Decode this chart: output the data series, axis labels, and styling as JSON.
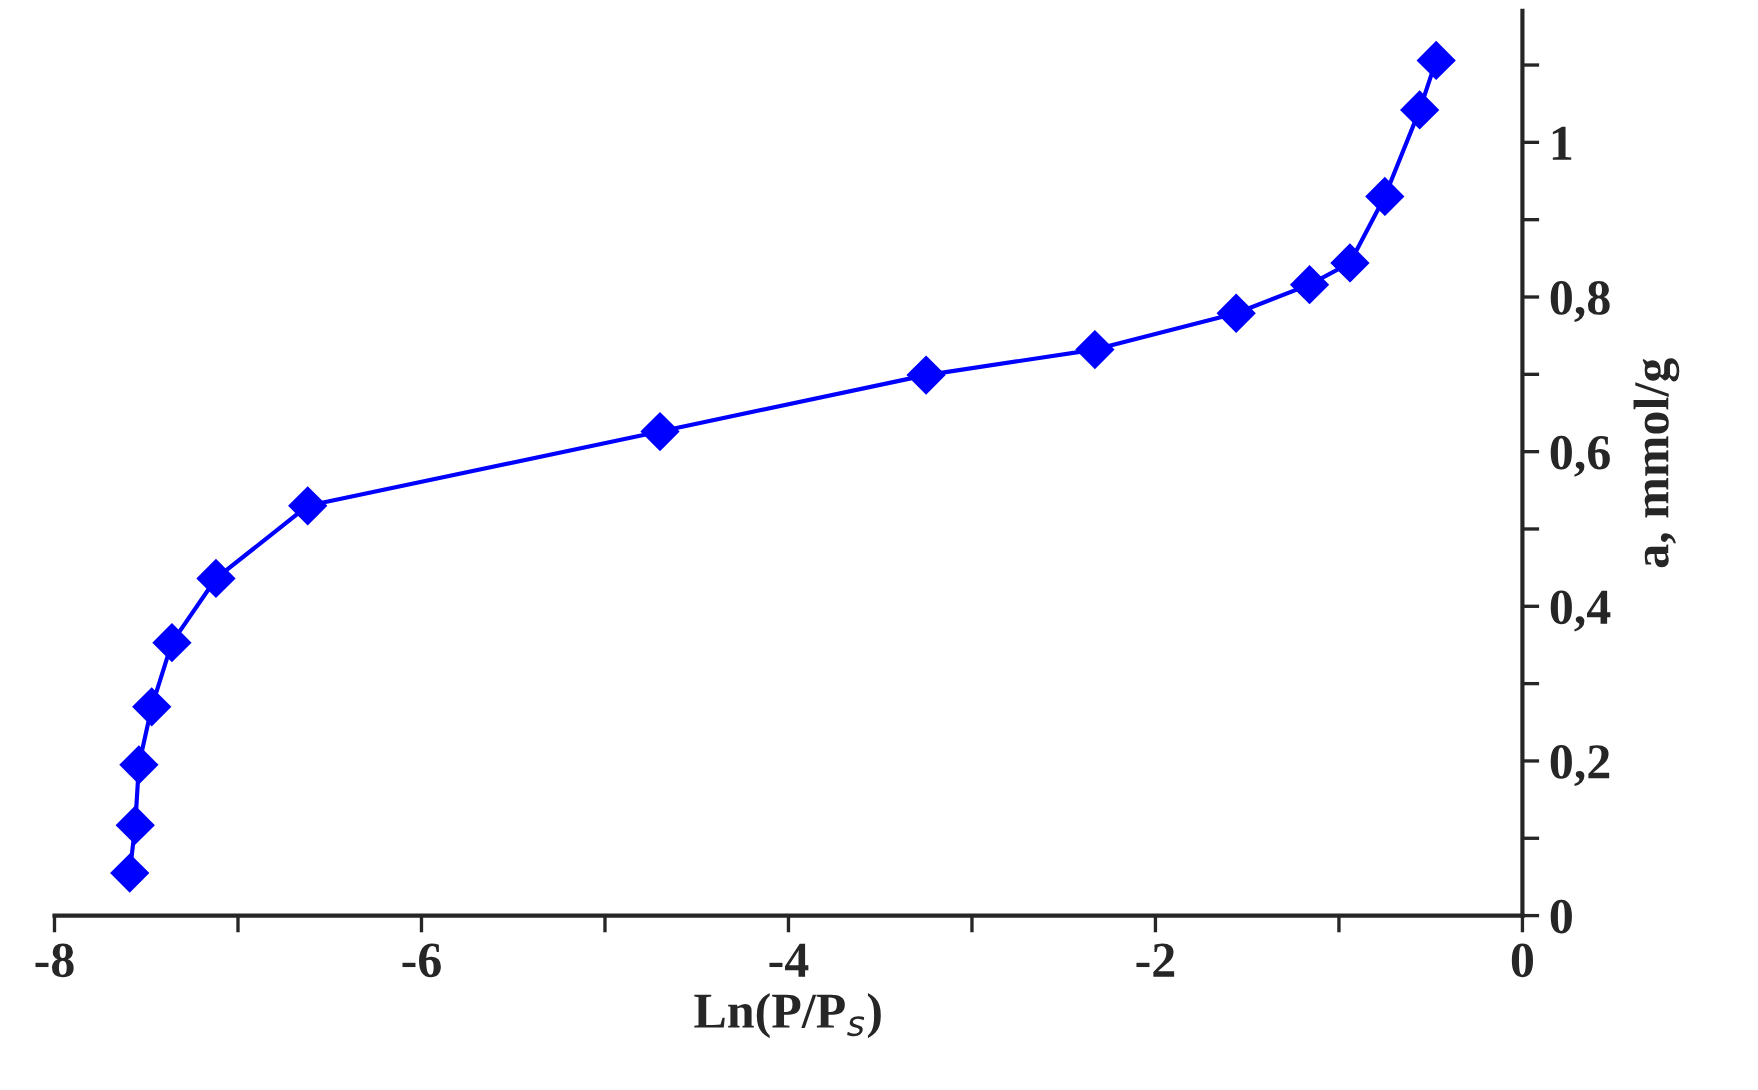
{
  "chart_data": {
    "type": "line",
    "xlabel": "Ln(P/P$_{s}$)",
    "ylabel": "a, mmol/g",
    "x": [
      -7.59,
      -7.56,
      -7.54,
      -7.47,
      -7.36,
      -7.12,
      -6.62,
      -4.7,
      -3.25,
      -2.33,
      -1.56,
      -1.16,
      -0.94,
      -0.75,
      -0.56,
      -0.47
    ],
    "series": [
      {
        "color": "#0000ff",
        "values": [
          0.055,
          0.117,
          0.195,
          0.27,
          0.353,
          0.436,
          0.53,
          0.626,
          0.699,
          0.732,
          0.779,
          0.816,
          0.844,
          0.93,
          1.042,
          1.106
        ]
      }
    ],
    "xlim": [
      -8,
      0
    ],
    "ylim": [
      0,
      1.17
    ],
    "xticks": [
      -8,
      {
        "value": -7,
        "label": null
      },
      -6,
      {
        "value": -5,
        "label": null
      },
      -4,
      {
        "value": -3,
        "label": null
      },
      -2,
      {
        "value": -1,
        "label": null
      },
      0
    ],
    "yticks": [
      {
        "value": 0,
        "label": "0"
      },
      {
        "value": 0.1,
        "label": null
      },
      {
        "value": 0.2,
        "label": "0,2"
      },
      {
        "value": 0.3,
        "label": null
      },
      {
        "value": 0.4,
        "label": "0,4"
      },
      {
        "value": 0.5,
        "label": null
      },
      {
        "value": 0.6,
        "label": "0,6"
      },
      {
        "value": 0.7,
        "label": null
      },
      {
        "value": 0.8,
        "label": "0,8"
      },
      {
        "value": 0.9,
        "label": null
      },
      {
        "value": 1,
        "label": "1"
      },
      {
        "value": 1.1,
        "label": null
      }
    ],
    "marker": "diamond",
    "line_style": "solid"
  }
}
